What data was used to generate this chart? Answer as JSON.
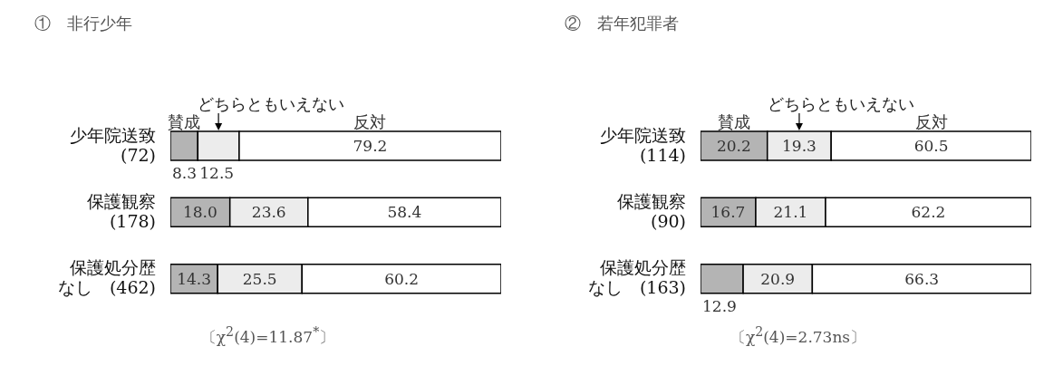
{
  "chart_data": [
    {
      "type": "bar",
      "orientation": "horizontal",
      "stacked": true,
      "title": "①　非行少年",
      "categories": [
        "少年院送致(72)",
        "保護観察(178)",
        "保護処分歴なし　(462)"
      ],
      "series": [
        {
          "name": "賛成",
          "color": "#b4b4b4",
          "values": [
            8.3,
            18.0,
            14.3
          ],
          "value_labels": [
            "8.3",
            "18.0",
            "14.3"
          ]
        },
        {
          "name": "どちらともいえない",
          "color": "#ececec",
          "values": [
            12.5,
            23.6,
            25.5
          ]
        },
        {
          "name": "反対",
          "color": "#ffffff",
          "values": [
            79.2,
            58.4,
            60.2
          ]
        }
      ],
      "xlim": [
        0,
        100
      ],
      "tick_labels": "y",
      "data_labels": true,
      "annotations": [
        "〔χ$^{2}$(4)=11.87$^{*}$〕"
      ]
    },
    {
      "type": "bar",
      "orientation": "horizontal",
      "stacked": true,
      "title": "②　若年犯罪者",
      "categories": [
        "少年院送致(114)",
        "保護観察(90)",
        "保護処分歴なし　(163)"
      ],
      "series": [
        {
          "name": "賛成",
          "color": "#b4b4b4",
          "values": [
            20.2,
            16.7,
            12.9
          ]
        },
        {
          "name": "どちらともいえない",
          "color": "#ececec",
          "values": [
            19.3,
            21.1,
            20.9
          ]
        },
        {
          "name": "反対",
          "color": "#ffffff",
          "values": [
            60.5,
            62.2,
            66.3
          ]
        }
      ],
      "xlim": [
        0,
        100
      ],
      "tick_labels": "y",
      "data_labels": true,
      "annotations": [
        "〔χ$^{2}$(4)=2.73ns〕"
      ]
    }
  ]
}
